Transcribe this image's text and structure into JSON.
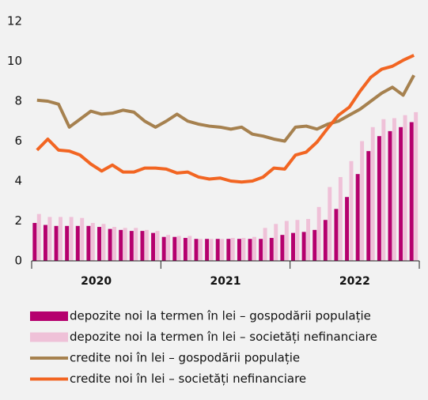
{
  "chart_data": {
    "type": "bar_line",
    "categories": [
      null,
      null,
      null,
      null,
      null,
      null,
      null,
      null,
      null,
      null,
      null,
      null,
      null,
      null,
      null,
      null,
      null,
      null,
      null,
      null,
      null,
      null,
      null,
      null,
      null,
      null,
      null,
      null,
      null,
      null,
      null,
      null,
      null,
      null,
      null,
      null
    ],
    "x_groups": [
      {
        "label": "2020",
        "size": 12
      },
      {
        "label": "2021",
        "size": 12
      },
      {
        "label": "2022",
        "size": 12
      }
    ],
    "ylim": [
      0,
      12
    ],
    "yticks": [
      0,
      2,
      4,
      6,
      8,
      10,
      12
    ],
    "series": [
      {
        "name": "depozite noi la termen în lei – gospodării populație",
        "kind": "bar",
        "color": "#b5006e",
        "values": [
          1.9,
          1.8,
          1.75,
          1.75,
          1.75,
          1.75,
          1.7,
          1.6,
          1.55,
          1.5,
          1.5,
          1.4,
          1.2,
          1.2,
          1.15,
          1.1,
          1.1,
          1.1,
          1.1,
          1.1,
          1.1,
          1.1,
          1.15,
          1.3,
          1.4,
          1.45,
          1.55,
          2.05,
          2.6,
          3.2,
          4.35,
          5.5,
          6.25,
          6.5,
          6.7,
          6.95
        ]
      },
      {
        "name": "depozite noi la termen în lei – societăți nefinanciare",
        "kind": "bar",
        "color": "#efc1d8",
        "values": [
          2.35,
          2.2,
          2.2,
          2.2,
          2.15,
          1.9,
          1.85,
          1.7,
          1.65,
          1.65,
          1.55,
          1.5,
          1.3,
          1.25,
          1.25,
          1.1,
          1.1,
          1.1,
          1.15,
          1.15,
          1.2,
          1.65,
          1.85,
          2.0,
          2.05,
          2.1,
          2.7,
          3.7,
          4.2,
          5.0,
          6.0,
          6.7,
          7.1,
          7.15,
          7.3,
          7.45
        ]
      },
      {
        "name": "credite noi în lei – gospodării populație",
        "kind": "line",
        "color": "#a6814f",
        "values": [
          8.05,
          8.0,
          7.85,
          6.7,
          7.1,
          7.5,
          7.35,
          7.4,
          7.55,
          7.45,
          7.0,
          6.7,
          7.0,
          7.35,
          7.0,
          6.85,
          6.75,
          6.7,
          6.6,
          6.7,
          6.35,
          6.25,
          6.1,
          6.0,
          6.7,
          6.75,
          6.6,
          6.85,
          7.0,
          7.3,
          7.6,
          8.0,
          8.4,
          8.7,
          8.3,
          9.3
        ]
      },
      {
        "name": "credite noi în lei – societăți nefinanciare",
        "kind": "line",
        "color": "#f26522",
        "values": [
          5.55,
          6.1,
          5.55,
          5.5,
          5.3,
          4.85,
          4.5,
          4.8,
          4.45,
          4.45,
          4.65,
          4.65,
          4.6,
          4.4,
          4.45,
          4.2,
          4.1,
          4.15,
          4.0,
          3.95,
          4.0,
          4.2,
          4.65,
          4.6,
          5.3,
          5.45,
          5.95,
          6.65,
          7.3,
          7.7,
          8.5,
          9.2,
          9.6,
          9.75,
          10.05,
          10.3
        ]
      }
    ]
  }
}
